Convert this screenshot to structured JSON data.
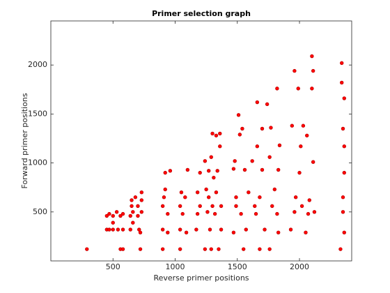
{
  "chart_data": {
    "type": "scatter",
    "title": "Primer selection graph",
    "xlabel": "Reverse primer positions",
    "ylabel": "Forward primer positions",
    "x": [
      290,
      450,
      450,
      470,
      470,
      500,
      500,
      500,
      530,
      540,
      560,
      560,
      580,
      580,
      580,
      640,
      640,
      650,
      650,
      660,
      660,
      680,
      700,
      700,
      710,
      720,
      720,
      730,
      730,
      730,
      900,
      900,
      900,
      910,
      920,
      920,
      940,
      940,
      960,
      1040,
      1040,
      1040,
      1050,
      1060,
      1080,
      1090,
      1100,
      1170,
      1180,
      1180,
      1200,
      1200,
      1240,
      1240,
      1250,
      1260,
      1270,
      1270,
      1280,
      1290,
      1290,
      1300,
      1300,
      1310,
      1320,
      1330,
      1330,
      1340,
      1350,
      1360,
      1360,
      1370,
      1370,
      1470,
      1470,
      1480,
      1490,
      1490,
      1510,
      1520,
      1530,
      1540,
      1550,
      1560,
      1570,
      1590,
      1620,
      1640,
      1650,
      1660,
      1660,
      1680,
      1680,
      1700,
      1700,
      1720,
      1740,
      1760,
      1760,
      1770,
      1780,
      1800,
      1820,
      1820,
      1830,
      1830,
      1840,
      1930,
      1940,
      1960,
      1960,
      1970,
      1990,
      2000,
      2010,
      2020,
      2030,
      2050,
      2060,
      2070,
      2080,
      2100,
      2100,
      2110,
      2110,
      2120,
      2330,
      2340,
      2340,
      2350,
      2350,
      2350,
      2360,
      2360,
      2360,
      2360
    ],
    "y": [
      120,
      320,
      460,
      320,
      480,
      320,
      390,
      460,
      500,
      320,
      460,
      120,
      120,
      480,
      320,
      320,
      460,
      560,
      620,
      390,
      500,
      650,
      560,
      460,
      320,
      120,
      290,
      700,
      500,
      620,
      120,
      320,
      560,
      650,
      730,
      900,
      480,
      290,
      920,
      120,
      320,
      560,
      700,
      480,
      650,
      290,
      930,
      320,
      480,
      700,
      560,
      900,
      120,
      1020,
      730,
      500,
      920,
      650,
      320,
      120,
      1060,
      1300,
      560,
      850,
      480,
      1280,
      700,
      920,
      120,
      1170,
      1300,
      560,
      320,
      290,
      940,
      1020,
      650,
      560,
      1490,
      1290,
      480,
      1350,
      120,
      930,
      320,
      700,
      1020,
      560,
      480,
      1620,
      1170,
      120,
      650,
      930,
      1350,
      320,
      1600,
      120,
      1060,
      1360,
      560,
      730,
      1760,
      480,
      930,
      290,
      1180,
      320,
      1380,
      1940,
      500,
      650,
      1760,
      900,
      1170,
      560,
      1380,
      290,
      1280,
      480,
      620,
      2090,
      1760,
      1010,
      1940,
      500,
      120,
      2020,
      1820,
      1350,
      650,
      500,
      290,
      1170,
      900,
      1660
    ],
    "color": "#ff0000",
    "xlim": [
      0,
      2420
    ],
    "xticks": [
      500,
      1000,
      1500,
      2000
    ],
    "ylim": [
      0,
      2450
    ],
    "yticks": [
      500,
      1000,
      1500,
      2000
    ],
    "grid": false
  }
}
